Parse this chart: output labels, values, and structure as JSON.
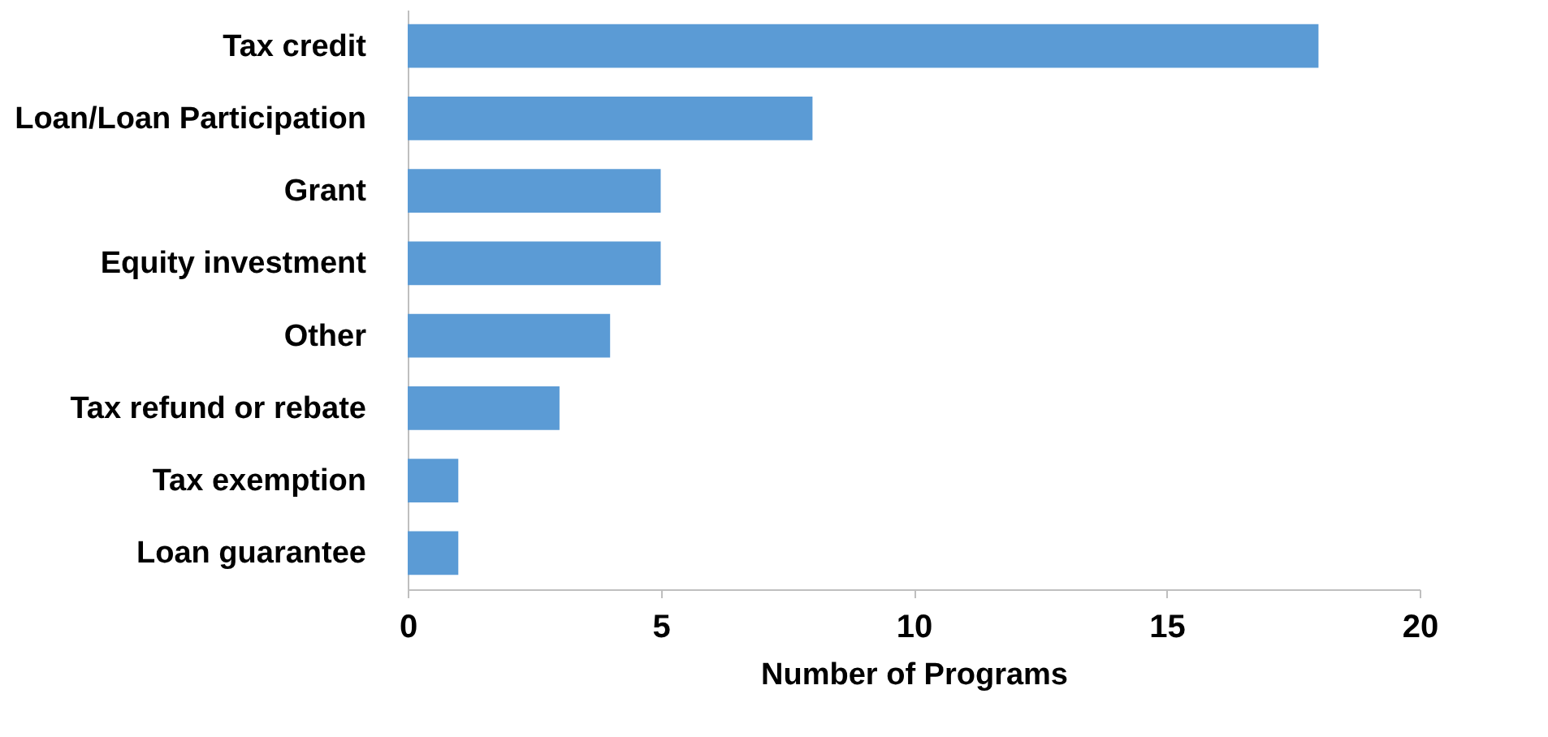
{
  "chart_data": {
    "type": "bar",
    "orientation": "horizontal",
    "xlabel": "Number of Programs",
    "categories": [
      "Tax credit",
      "Loan/Loan Participation",
      "Grant",
      "Equity investment",
      "Other",
      "Tax refund or rebate",
      "Tax exemption",
      "Loan guarantee"
    ],
    "values": [
      18,
      8,
      5,
      5,
      4,
      3,
      1,
      1
    ],
    "color": "#5b9bd5",
    "xlim": [
      0,
      20
    ],
    "xticks": [
      0,
      5,
      10,
      15,
      20
    ],
    "grid": false
  }
}
